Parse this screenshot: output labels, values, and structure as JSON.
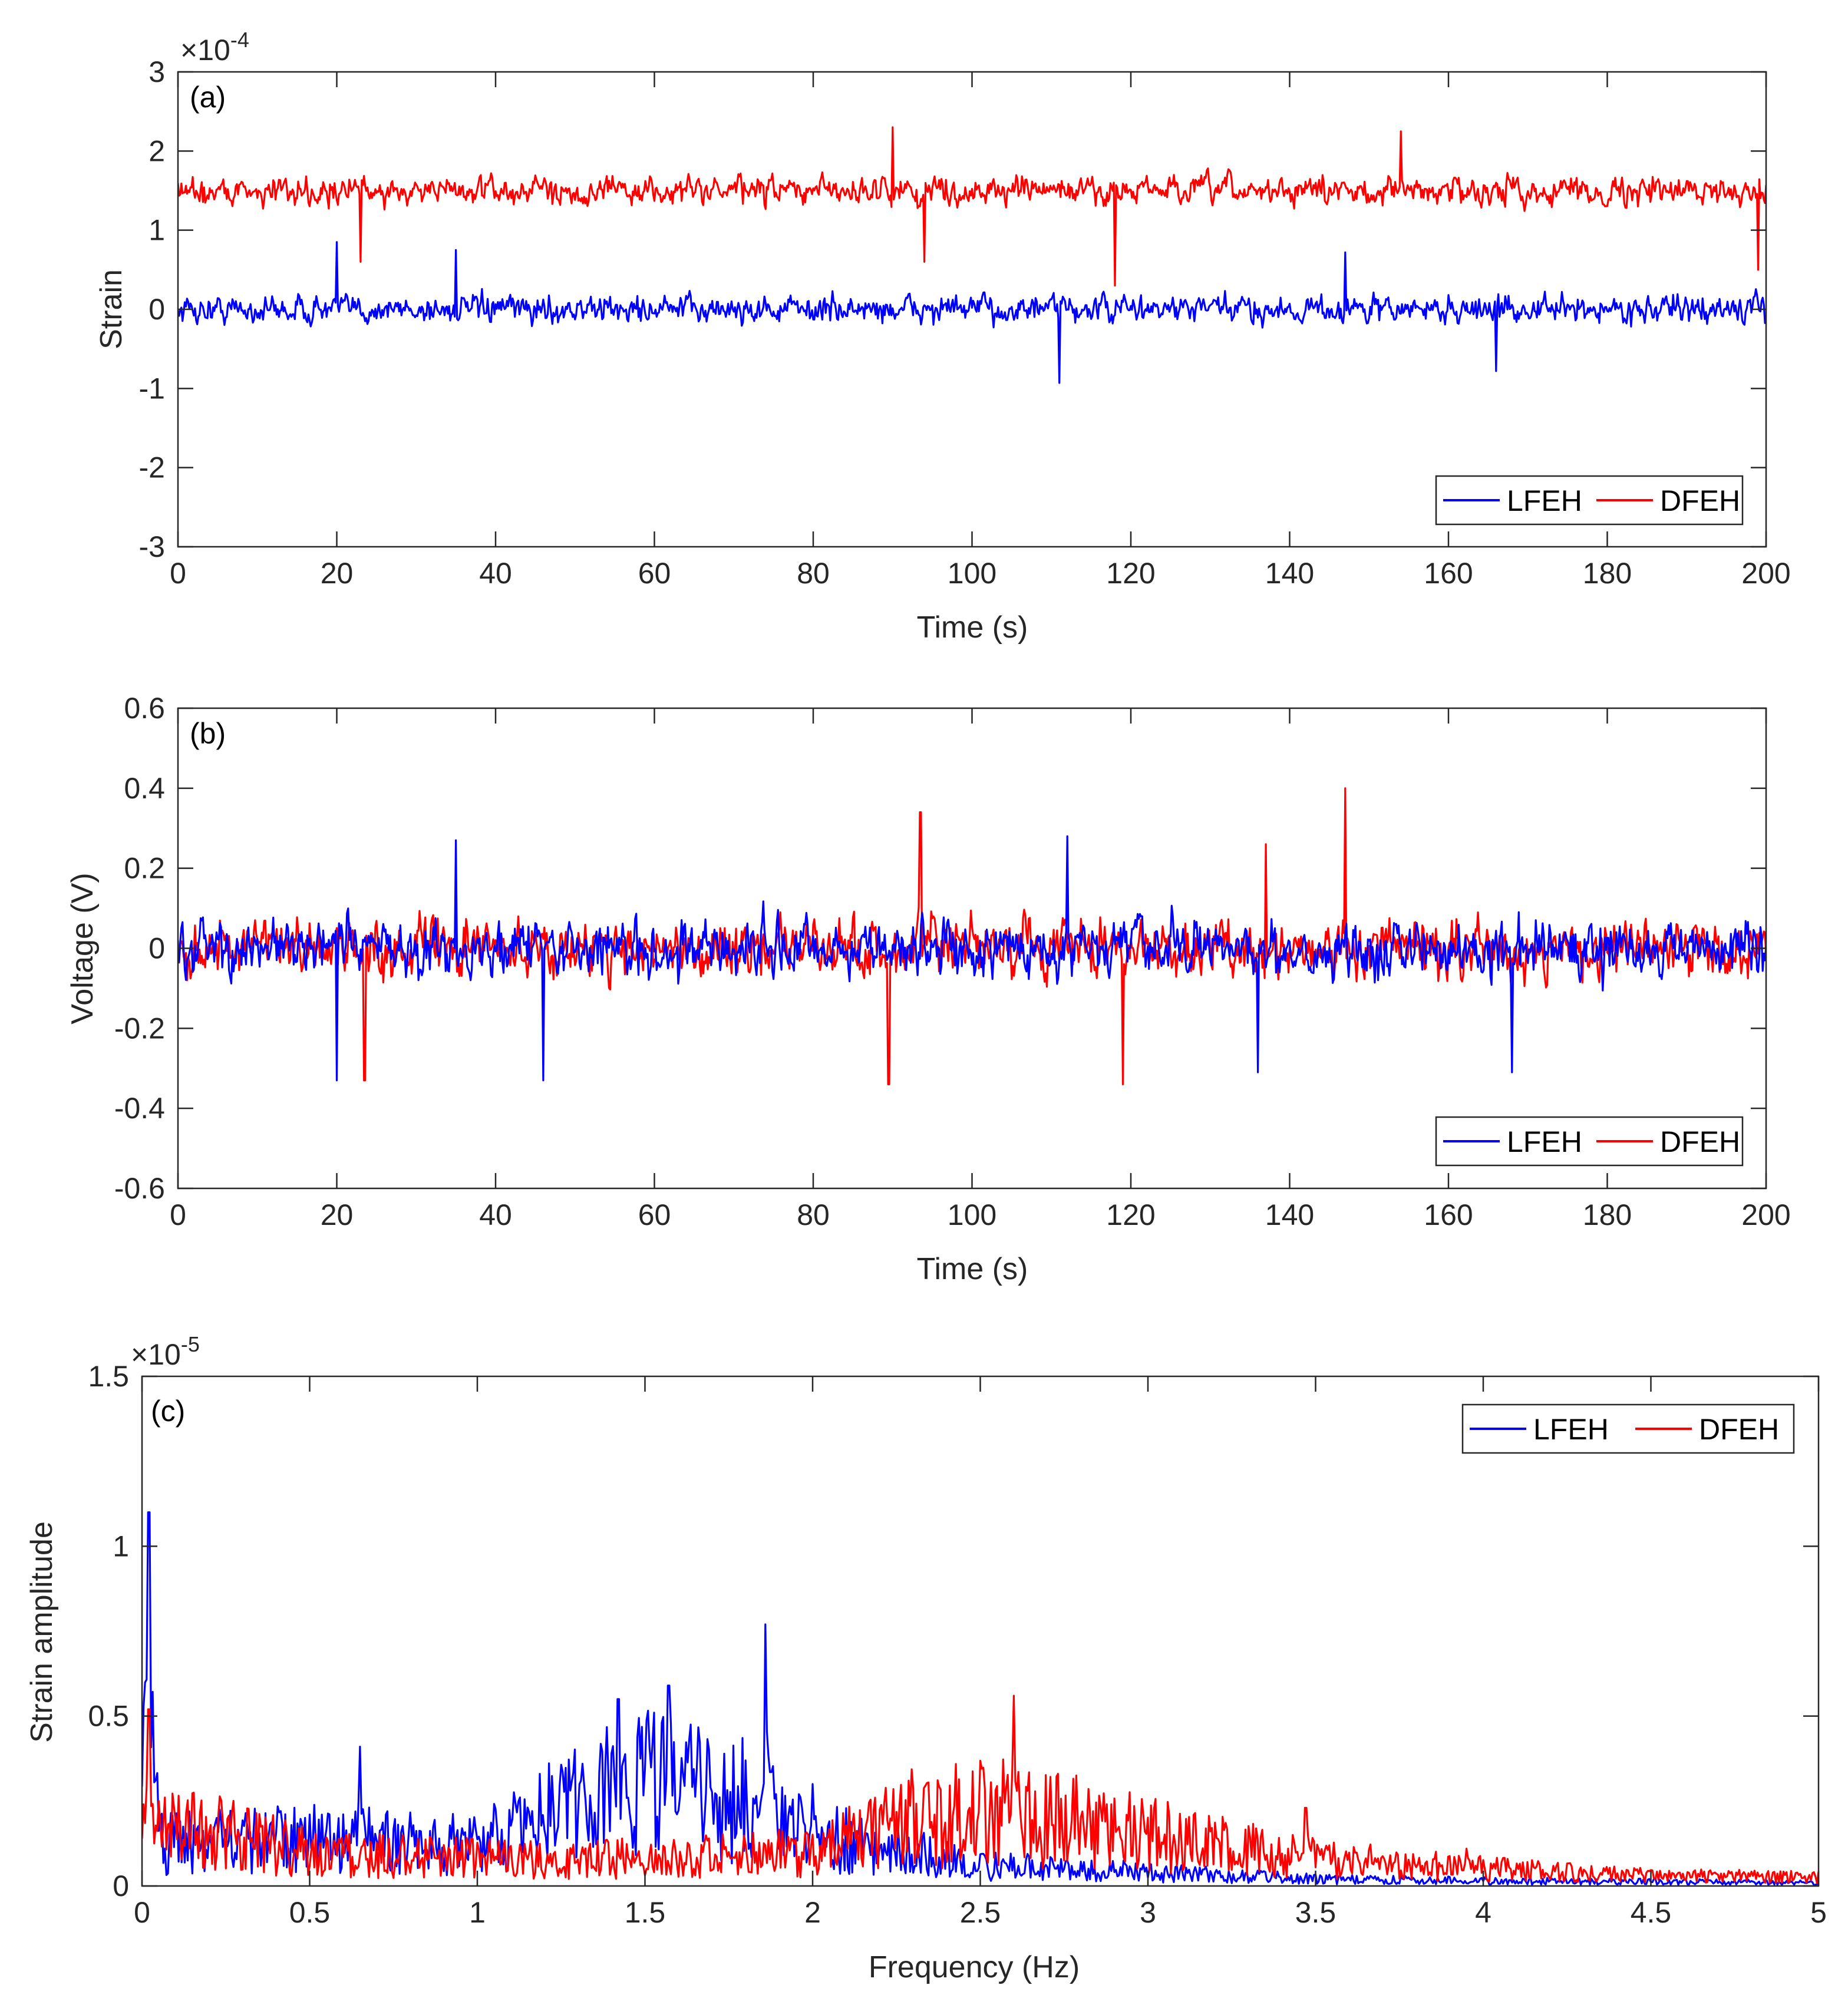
{
  "chart_data": [
    {
      "type": "line",
      "panel_label": "(a)",
      "xlabel": "Time (s)",
      "ylabel": "Strain",
      "xlim": [
        0,
        200
      ],
      "ylim": [
        -3,
        3
      ],
      "y_multiplier": "×10",
      "y_exponent": "-4",
      "xticks": [
        "0",
        "20",
        "40",
        "60",
        "80",
        "100",
        "120",
        "140",
        "160",
        "180",
        "200"
      ],
      "yticks": [
        "-3",
        "-2",
        "-1",
        "0",
        "1",
        "2",
        "3"
      ],
      "legend": {
        "position": "bottom-right",
        "entries": [
          "LFEH",
          "DFEH"
        ]
      },
      "series": [
        {
          "name": "LFEH",
          "color": "#0000ff",
          "mean": 0.0,
          "typical_range": [
            -0.5,
            0.5
          ],
          "peaks": [
            [
              20,
              0.85
            ],
            [
              35,
              0.75
            ],
            [
              111,
              -0.93
            ],
            [
              147,
              0.72
            ],
            [
              166,
              -0.78
            ]
          ]
        },
        {
          "name": "DFEH",
          "color": "#ff0000",
          "mean": 1.5,
          "typical_range": [
            1.0,
            2.0
          ],
          "peaks": [
            [
              23,
              0.6
            ],
            [
              90,
              2.3
            ],
            [
              94,
              0.6
            ],
            [
              118,
              0.3
            ],
            [
              154,
              2.25
            ],
            [
              199,
              0.5
            ]
          ]
        }
      ]
    },
    {
      "type": "line",
      "panel_label": "(b)",
      "xlabel": "Time (s)",
      "ylabel": "Voltage (V)",
      "xlim": [
        0,
        200
      ],
      "ylim": [
        -0.6,
        0.6
      ],
      "xticks": [
        "0",
        "20",
        "40",
        "60",
        "80",
        "100",
        "120",
        "140",
        "160",
        "180",
        "200"
      ],
      "yticks": [
        "-0.6",
        "-0.4",
        "-0.2",
        "0",
        "0.2",
        "0.4",
        "0.6"
      ],
      "legend": {
        "position": "bottom-right",
        "entries": [
          "LFEH",
          "DFEH"
        ]
      },
      "series": [
        {
          "name": "DFEH",
          "color": "#ff0000",
          "mean": 0.0,
          "typical_range": [
            -0.2,
            0.2
          ],
          "peaks": [
            [
              93.5,
              0.34
            ],
            [
              147,
              0.4
            ],
            [
              89.5,
              -0.34
            ],
            [
              119,
              -0.34
            ],
            [
              23.5,
              -0.33
            ],
            [
              137,
              0.26
            ]
          ]
        },
        {
          "name": "LFEH",
          "color": "#0000ff",
          "mean": 0.0,
          "typical_range": [
            -0.2,
            0.2
          ],
          "peaks": [
            [
              20,
              -0.33
            ],
            [
              46,
              -0.33
            ],
            [
              35,
              0.27
            ],
            [
              112,
              0.28
            ],
            [
              136,
              -0.31
            ],
            [
              168,
              -0.31
            ]
          ]
        }
      ]
    },
    {
      "type": "line",
      "panel_label": "(c)",
      "xlabel": "Frequency (Hz)",
      "ylabel": "Strain amplitude",
      "xlim": [
        0,
        5
      ],
      "ylim": [
        0,
        1.5
      ],
      "y_multiplier": "×10",
      "y_exponent": "-5",
      "xticks": [
        "0",
        "0.5",
        "1",
        "1.5",
        "2",
        "2.5",
        "3",
        "3.5",
        "4",
        "4.5",
        "5"
      ],
      "yticks": [
        "0",
        "0.5",
        "1",
        "1.5"
      ],
      "legend": {
        "position": "top-right",
        "entries": [
          "LFEH",
          "DFEH"
        ]
      },
      "series": [
        {
          "name": "LFEH",
          "color": "#0000ff",
          "peaks": [
            [
              0.02,
              1.1
            ],
            [
              0.65,
              0.41
            ],
            [
              1.42,
              0.55
            ],
            [
              1.57,
              0.59
            ],
            [
              1.86,
              0.77
            ],
            [
              2.0,
              0.3
            ]
          ],
          "envelope": [
            [
              0,
              0.12
            ],
            [
              0.5,
              0.14
            ],
            [
              1.0,
              0.12
            ],
            [
              1.3,
              0.25
            ],
            [
              1.5,
              0.3
            ],
            [
              1.8,
              0.25
            ],
            [
              2.0,
              0.15
            ],
            [
              2.5,
              0.06
            ],
            [
              3.0,
              0.04
            ],
            [
              3.5,
              0.02
            ],
            [
              4.0,
              0.015
            ],
            [
              5.0,
              0.01
            ]
          ]
        },
        {
          "name": "DFEH",
          "color": "#ff0000",
          "peaks": [
            [
              0.02,
              0.52
            ],
            [
              2.6,
              0.56
            ],
            [
              3.47,
              0.23
            ],
            [
              3.95,
              0.11
            ]
          ],
          "envelope": [
            [
              0,
              0.2
            ],
            [
              0.5,
              0.1
            ],
            [
              1.0,
              0.08
            ],
            [
              1.5,
              0.08
            ],
            [
              2.0,
              0.1
            ],
            [
              2.3,
              0.2
            ],
            [
              2.6,
              0.22
            ],
            [
              3.0,
              0.15
            ],
            [
              3.5,
              0.08
            ],
            [
              4.0,
              0.05
            ],
            [
              4.5,
              0.03
            ],
            [
              5.0,
              0.025
            ]
          ]
        }
      ]
    }
  ]
}
